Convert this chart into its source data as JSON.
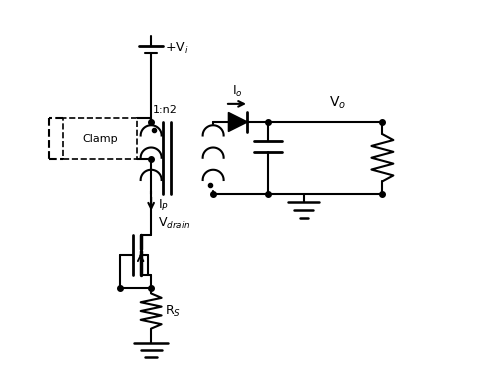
{
  "bg_color": "#ffffff",
  "line_color": "#000000",
  "line_width": 1.5,
  "fig_width": 4.93,
  "fig_height": 3.87,
  "dpi": 100,
  "labels": {
    "Vi": "+V$_i$",
    "n2": "1:n2",
    "Io": "I$_o$",
    "Vo": "V$_o$",
    "Ip": "I$_P$",
    "Vdrain": "V$_{drain}$",
    "Rs": "R$_S$",
    "Clamp": "Clamp"
  }
}
